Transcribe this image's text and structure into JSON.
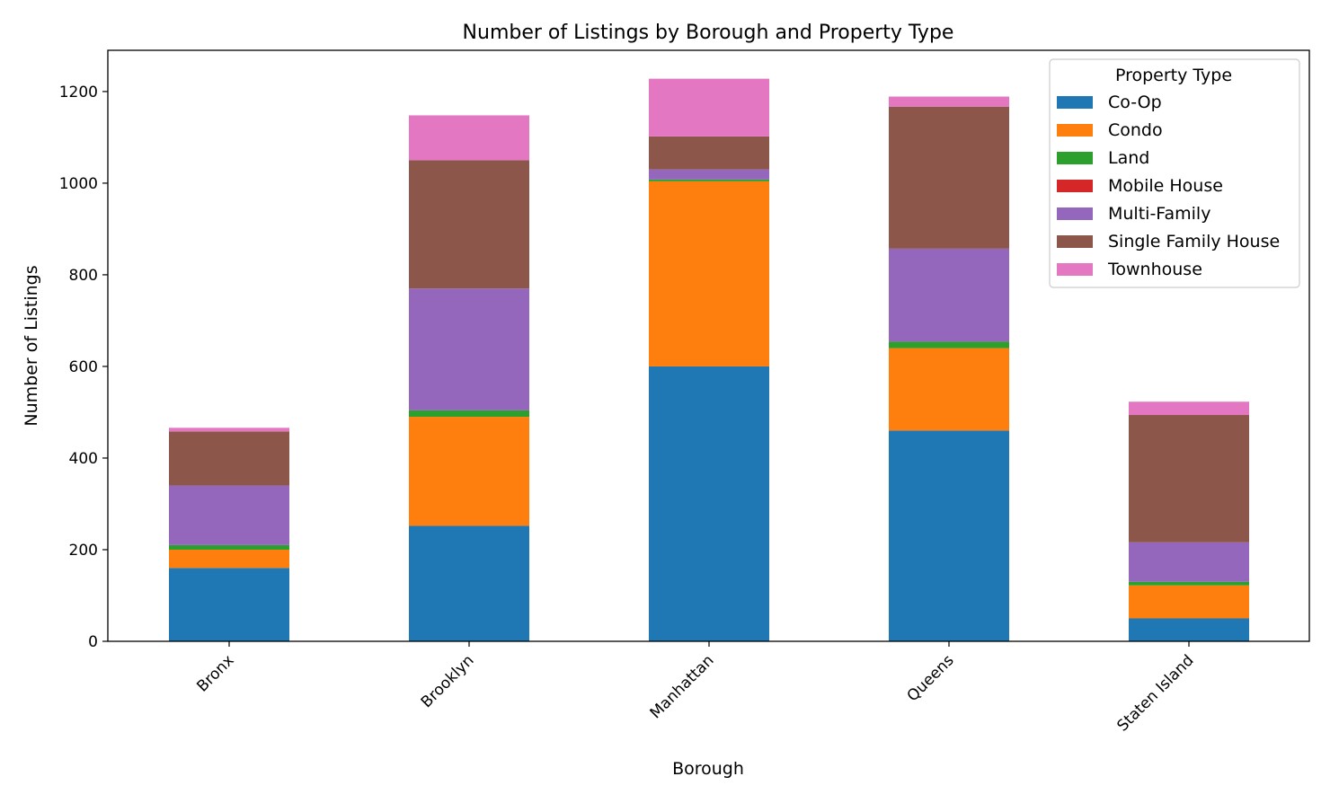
{
  "chart_data": {
    "type": "bar",
    "stacked": true,
    "title": "Number of Listings by Borough and Property Type",
    "xlabel": "Borough",
    "ylabel": "Number of Listings",
    "ylim": [
      0,
      1290
    ],
    "yticks": [
      0,
      200,
      400,
      600,
      800,
      1000,
      1200
    ],
    "categories": [
      "Bronx",
      "Brooklyn",
      "Manhattan",
      "Queens",
      "Staten Island"
    ],
    "legend": {
      "title": "Property Type",
      "placement": "top-right"
    },
    "series": [
      {
        "name": "Co-Op",
        "color": "#1f77b4",
        "values": [
          160,
          252,
          600,
          460,
          50
        ]
      },
      {
        "name": "Condo",
        "color": "#ff7f0e",
        "values": [
          40,
          238,
          404,
          180,
          72
        ]
      },
      {
        "name": "Land",
        "color": "#2ca02c",
        "values": [
          10,
          14,
          4,
          14,
          8
        ]
      },
      {
        "name": "Mobile House",
        "color": "#d62728",
        "values": [
          0,
          0,
          0,
          0,
          0
        ]
      },
      {
        "name": "Multi-Family",
        "color": "#9467bd",
        "values": [
          130,
          266,
          22,
          203,
          86
        ]
      },
      {
        "name": "Single Family House",
        "color": "#8c564b",
        "values": [
          118,
          280,
          72,
          310,
          278
        ]
      },
      {
        "name": "Townhouse",
        "color": "#e377c2",
        "values": [
          8,
          98,
          126,
          22,
          29
        ]
      }
    ]
  }
}
